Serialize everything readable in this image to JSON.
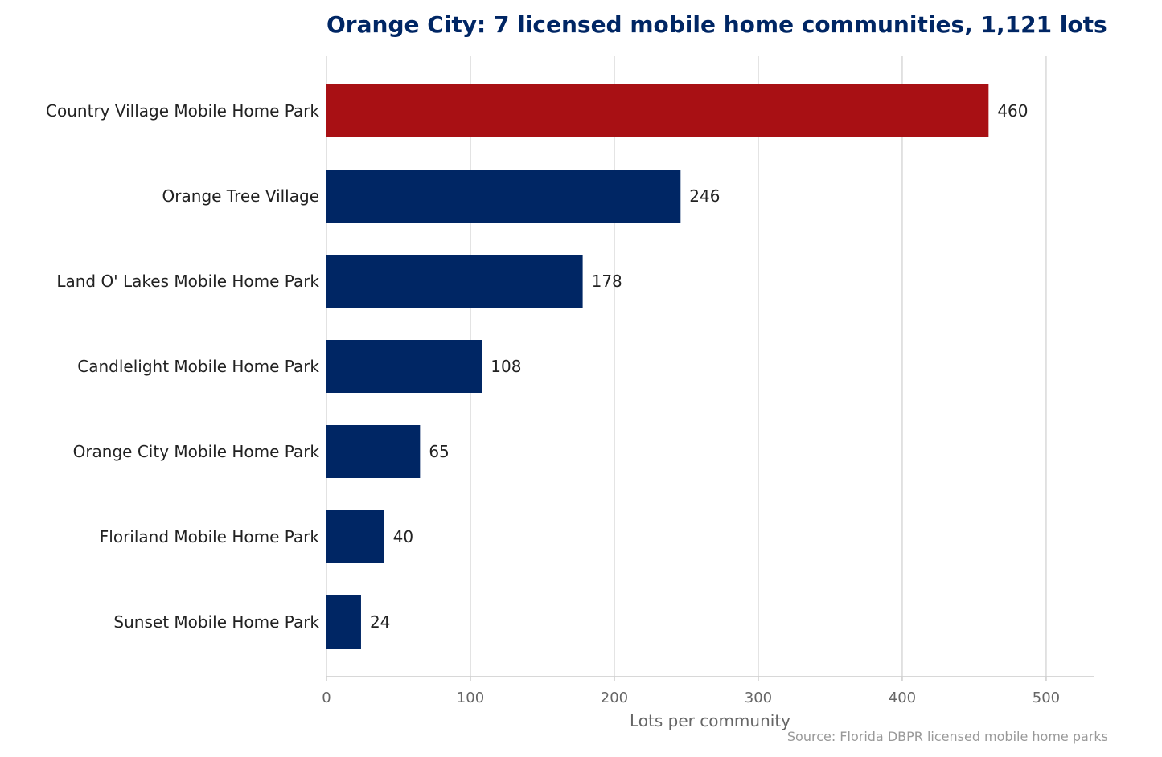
{
  "chart_data": {
    "type": "bar",
    "orientation": "horizontal",
    "title": "Orange City: 7 licensed mobile home communities, 1,121 lots",
    "xlabel": "Lots per community",
    "ylabel": "",
    "source": "Source: Florida DBPR licensed mobile home parks",
    "categories": [
      "Country Village Mobile Home Park",
      "Orange Tree Village",
      "Land O' Lakes Mobile Home Park",
      "Candlelight Mobile Home Park",
      "Orange City Mobile Home Park",
      "Floriland Mobile Home Park",
      "Sunset Mobile Home Park"
    ],
    "values": [
      460,
      246,
      178,
      108,
      65,
      40,
      24
    ],
    "highlight_index": 0,
    "xlim": [
      0,
      533
    ],
    "xticks": [
      0,
      100,
      200,
      300,
      400,
      500
    ],
    "grid": "vertical",
    "colors": {
      "bar": "#002664",
      "highlight": "#A81014",
      "grid": "#d9d9d9",
      "axis": "#cccccc",
      "title": "#002664"
    }
  }
}
